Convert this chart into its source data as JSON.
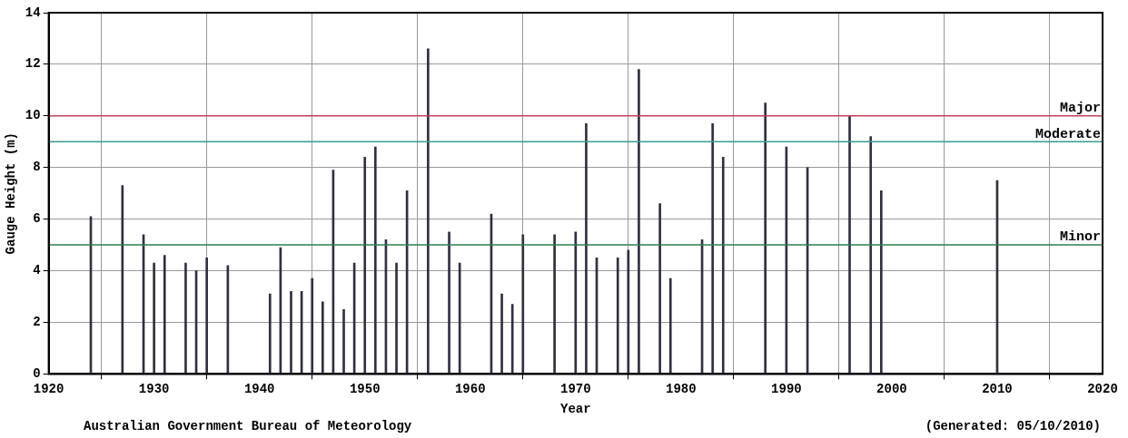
{
  "chart_data": {
    "type": "bar",
    "xlabel": "Year",
    "ylabel": "Gauge Height (m)",
    "x": [
      1924,
      1927,
      1929,
      1930,
      1931,
      1933,
      1934,
      1935,
      1937,
      1941,
      1942,
      1943,
      1944,
      1945,
      1946,
      1947,
      1948,
      1949,
      1950,
      1951,
      1952,
      1953,
      1954,
      1956,
      1958,
      1959,
      1962,
      1963,
      1964,
      1965,
      1968,
      1970,
      1971,
      1972,
      1974,
      1975,
      1976,
      1978,
      1979,
      1982,
      1983,
      1984,
      1988,
      1990,
      1992,
      1996,
      1998,
      1999,
      2010
    ],
    "values": [
      6.1,
      7.3,
      5.4,
      4.3,
      4.6,
      4.3,
      4.0,
      4.5,
      4.2,
      3.1,
      4.9,
      3.2,
      3.2,
      3.7,
      2.8,
      7.9,
      2.5,
      4.3,
      8.4,
      8.8,
      5.2,
      4.3,
      7.1,
      12.6,
      5.5,
      4.3,
      6.2,
      3.1,
      2.7,
      5.4,
      5.4,
      5.5,
      9.7,
      4.5,
      4.5,
      4.8,
      11.8,
      6.6,
      3.7,
      5.2,
      9.7,
      8.4,
      10.5,
      8.8,
      8.0,
      10.0,
      9.2,
      7.1,
      7.5
    ],
    "color": "#303040",
    "xlim": [
      1920,
      2020
    ],
    "xticks": [
      1920,
      1930,
      1940,
      1950,
      1960,
      1970,
      1980,
      1990,
      2000,
      2010,
      2020
    ],
    "ylim": [
      0,
      14
    ],
    "yticks": [
      0,
      2,
      4,
      6,
      8,
      10,
      12,
      14
    ],
    "grid": true,
    "ref_lines": [
      {
        "axis": "y",
        "value": 10,
        "label": "Major",
        "color": "#c0405a"
      },
      {
        "axis": "y",
        "value": 9,
        "label": "Moderate",
        "color": "#3a9a90"
      },
      {
        "axis": "y",
        "value": 5,
        "label": "Minor",
        "color": "#2e7d50"
      }
    ],
    "annotations": [
      "Australian Government Bureau of Meteorology",
      "(Generated: 05/10/2010)"
    ]
  }
}
